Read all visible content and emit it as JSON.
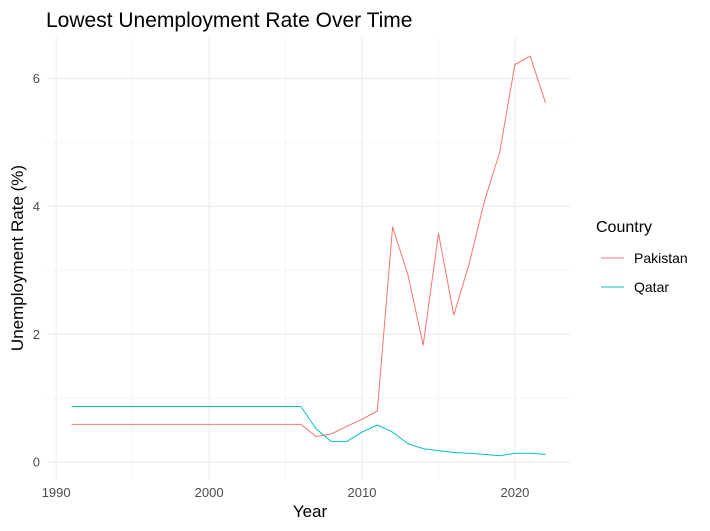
{
  "chart_data": {
    "type": "line",
    "title": "Lowest Unemployment Rate Over Time",
    "xlabel": "Year",
    "ylabel": "Unemployment Rate (%)",
    "xlim": [
      1989.4,
      2023.6
    ],
    "ylim": [
      -0.28,
      6.65
    ],
    "x_ticks": [
      1990,
      2000,
      2010,
      2020
    ],
    "y_ticks": [
      0,
      2,
      4,
      6
    ],
    "grid": true,
    "legend": {
      "title": "Country",
      "position": "right"
    },
    "series": [
      {
        "name": "Pakistan",
        "color": "#F8766D",
        "x": [
          1991,
          1992,
          1993,
          1994,
          1995,
          1996,
          1997,
          1998,
          1999,
          2000,
          2001,
          2002,
          2003,
          2004,
          2005,
          2006,
          2007,
          2008,
          2009,
          2010,
          2011,
          2012,
          2013,
          2014,
          2015,
          2016,
          2017,
          2018,
          2019,
          2020,
          2021,
          2022
        ],
        "y": [
          0.59,
          0.59,
          0.59,
          0.59,
          0.59,
          0.59,
          0.59,
          0.59,
          0.59,
          0.59,
          0.59,
          0.59,
          0.59,
          0.59,
          0.59,
          0.59,
          0.4,
          0.44,
          0.56,
          0.67,
          0.8,
          3.68,
          2.93,
          1.83,
          3.58,
          2.3,
          3.1,
          4.08,
          4.85,
          6.22,
          6.35,
          5.62
        ]
      },
      {
        "name": "Qatar",
        "color": "#00BFC4",
        "x": [
          1991,
          1992,
          1993,
          1994,
          1995,
          1996,
          1997,
          1998,
          1999,
          2000,
          2001,
          2002,
          2003,
          2004,
          2005,
          2006,
          2007,
          2008,
          2009,
          2010,
          2011,
          2012,
          2013,
          2014,
          2015,
          2016,
          2017,
          2018,
          2019,
          2020,
          2021,
          2022
        ],
        "y": [
          0.87,
          0.87,
          0.87,
          0.87,
          0.87,
          0.87,
          0.87,
          0.87,
          0.87,
          0.87,
          0.87,
          0.87,
          0.87,
          0.87,
          0.87,
          0.87,
          0.52,
          0.32,
          0.32,
          0.47,
          0.58,
          0.47,
          0.29,
          0.21,
          0.18,
          0.15,
          0.14,
          0.12,
          0.1,
          0.14,
          0.14,
          0.12
        ]
      }
    ]
  }
}
